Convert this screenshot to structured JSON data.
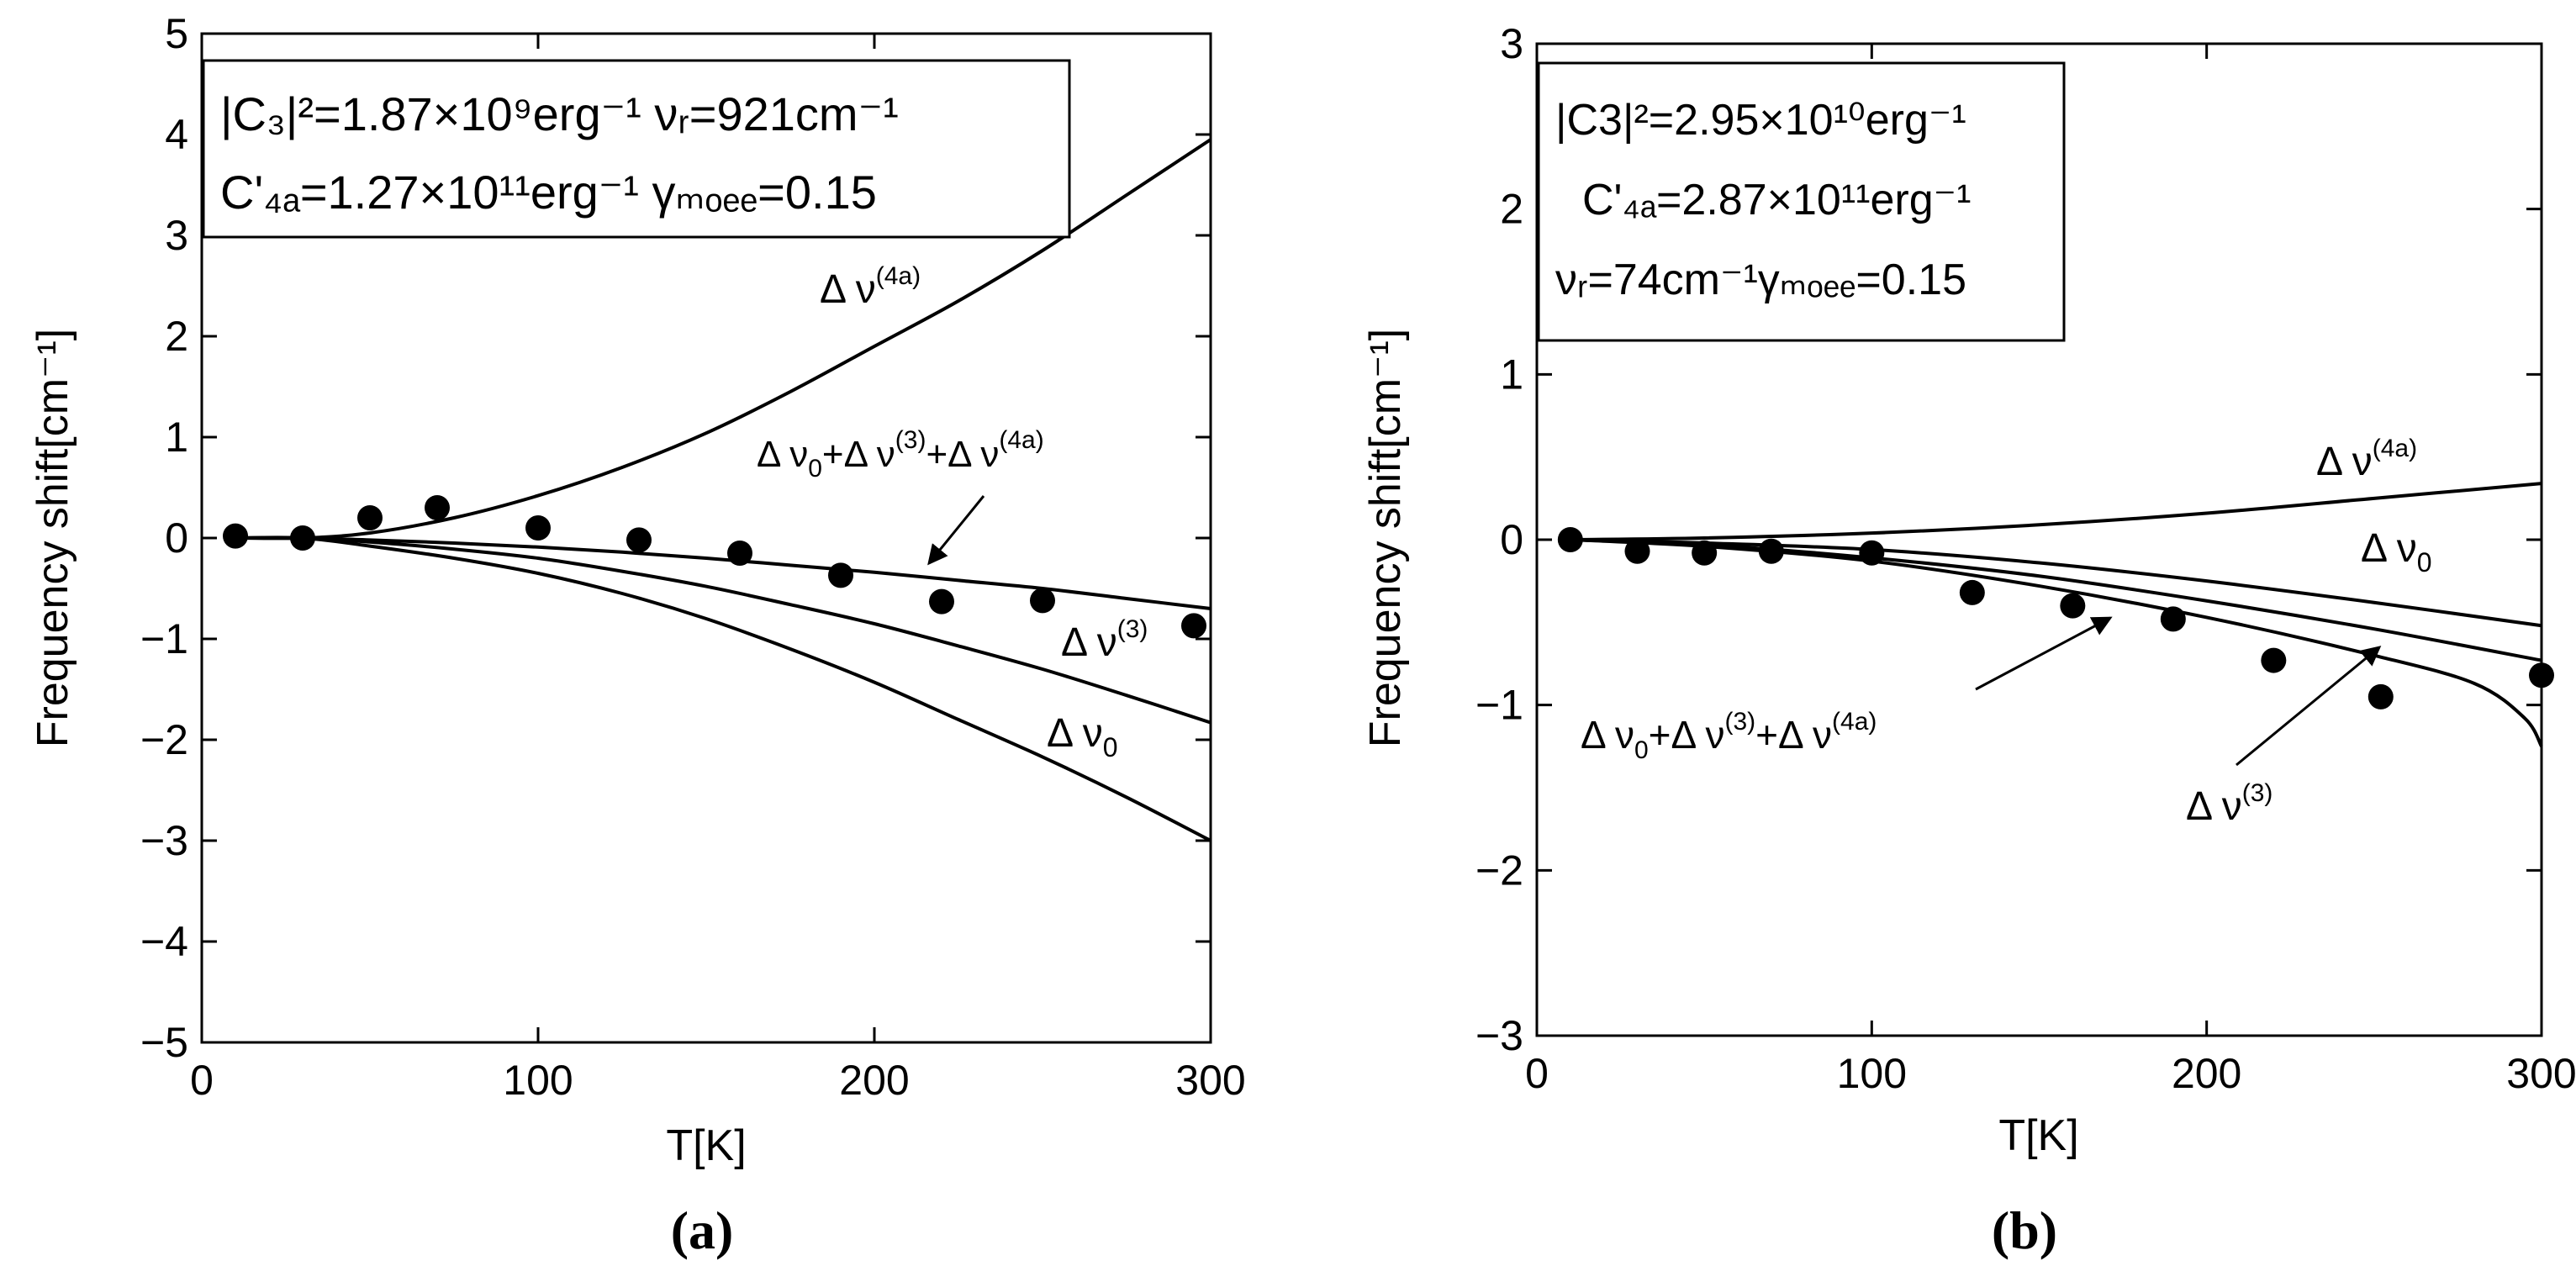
{
  "chart_data": [
    {
      "panel_label": "(a)",
      "type": "line",
      "xlabel": "T[K]",
      "ylabel": "Frequency shift[cm⁻¹]",
      "xlim": [
        0,
        300
      ],
      "ylim": [
        -5,
        5
      ],
      "xticks": [
        0,
        100,
        200,
        300
      ],
      "yticks": [
        -5,
        -4,
        -3,
        -2,
        -1,
        0,
        1,
        2,
        3,
        4,
        5
      ],
      "xtick_labels": [
        "0",
        "100",
        "200",
        "300"
      ],
      "ytick_labels": [
        "−5",
        "−4",
        "−3",
        "−2",
        "−1",
        "0",
        "1",
        "2",
        "3",
        "4",
        "5"
      ],
      "grid": false,
      "legend_box": {
        "line1": "|C₃|²=1.87×10⁹erg⁻¹  νᵣ=921cm⁻¹",
        "line2": "C'₄ₐ=1.27×10¹¹erg⁻¹ γₘₒₑₑ=0.15"
      },
      "series": [
        {
          "name": "Δν(4a)",
          "x": [
            10,
            30,
            50,
            75,
            100,
            125,
            150,
            175,
            200,
            225,
            250,
            275,
            300
          ],
          "y": [
            0,
            0,
            0.05,
            0.2,
            0.42,
            0.7,
            1.04,
            1.45,
            1.9,
            2.35,
            2.85,
            3.4,
            3.95
          ]
        },
        {
          "name": "Δν0+Δν(3)+Δν(4a)",
          "x": [
            10,
            30,
            50,
            75,
            100,
            125,
            150,
            175,
            200,
            225,
            250,
            275,
            300
          ],
          "y": [
            0,
            0,
            -0.02,
            -0.05,
            -0.09,
            -0.14,
            -0.2,
            -0.27,
            -0.34,
            -0.42,
            -0.5,
            -0.6,
            -0.7
          ]
        },
        {
          "name": "Δν(3)",
          "x": [
            10,
            30,
            50,
            75,
            100,
            125,
            150,
            175,
            200,
            225,
            250,
            275,
            300
          ],
          "y": [
            0,
            0,
            -0.04,
            -0.11,
            -0.2,
            -0.33,
            -0.48,
            -0.66,
            -0.85,
            -1.07,
            -1.3,
            -1.56,
            -1.83
          ]
        },
        {
          "name": "Δν0",
          "x": [
            10,
            30,
            50,
            75,
            100,
            125,
            150,
            175,
            200,
            225,
            250,
            275,
            300
          ],
          "y": [
            0,
            0,
            -0.08,
            -0.2,
            -0.35,
            -0.55,
            -0.8,
            -1.1,
            -1.43,
            -1.8,
            -2.17,
            -2.57,
            -3.0
          ]
        }
      ],
      "points": {
        "x": [
          10,
          30,
          50,
          70,
          100,
          130,
          160,
          190,
          220,
          250,
          295
        ],
        "y": [
          0.02,
          0.0,
          0.2,
          0.3,
          0.1,
          -0.02,
          -0.15,
          -0.37,
          -0.63,
          -0.62,
          -0.87
        ]
      },
      "annotations": {
        "a4": "Δ ν",
        "a4_sup": "(4a)",
        "sum_1": "Δ ν",
        "sum_1_sub": "0",
        "sum_2": "+Δ ν",
        "sum_2_sup": "(3)",
        "sum_3": "+Δ ν",
        "sum_3_sup": "(4a)",
        "a3": "Δ ν",
        "a3_sup": "(3)",
        "a0": "Δ ν",
        "a0_sub": "0"
      }
    },
    {
      "panel_label": "(b)",
      "type": "line",
      "xlabel": "T[K]",
      "ylabel": "Frequency shift[cm⁻¹]",
      "xlim": [
        0,
        300
      ],
      "ylim": [
        -3,
        3
      ],
      "xticks": [
        0,
        100,
        200,
        300
      ],
      "yticks": [
        -3,
        -2,
        -1,
        0,
        1,
        2,
        3
      ],
      "xtick_labels": [
        "0",
        "100",
        "200",
        "300"
      ],
      "ytick_labels": [
        "−3",
        "−2",
        "−1",
        "0",
        "1",
        "2",
        "3"
      ],
      "grid": false,
      "legend_box": {
        "line1": "|C3|²=2.95×10¹⁰erg⁻¹",
        "line2": "C'₄ₐ=2.87×10¹¹erg⁻¹",
        "line3": "νᵣ=74cm⁻¹γₘₒₑₑ=0.15"
      },
      "series": [
        {
          "name": "Δν(4a)",
          "x": [
            10,
            50,
            100,
            150,
            200,
            250,
            300
          ],
          "y": [
            0,
            0.01,
            0.04,
            0.09,
            0.16,
            0.25,
            0.34
          ]
        },
        {
          "name": "Δν0",
          "x": [
            10,
            50,
            100,
            150,
            200,
            250,
            300
          ],
          "y": [
            0,
            -0.02,
            -0.06,
            -0.14,
            -0.25,
            -0.38,
            -0.52
          ]
        },
        {
          "name": "Δν(3)",
          "x": [
            10,
            50,
            100,
            150,
            200,
            250,
            300
          ],
          "y": [
            0,
            -0.03,
            -0.11,
            -0.22,
            -0.37,
            -0.54,
            -0.73
          ]
        },
        {
          "name": "Δν0+Δν(3)+Δν(4a)",
          "x": [
            10,
            50,
            100,
            150,
            200,
            250,
            280,
            295,
            300
          ],
          "y": [
            0,
            -0.04,
            -0.13,
            -0.28,
            -0.47,
            -0.7,
            -0.87,
            -1.08,
            -1.25
          ]
        }
      ],
      "points": {
        "x": [
          10,
          30,
          50,
          70,
          100,
          130,
          160,
          190,
          220,
          252,
          300
        ],
        "y": [
          0.0,
          -0.07,
          -0.08,
          -0.07,
          -0.08,
          -0.32,
          -0.4,
          -0.48,
          -0.73,
          -0.95,
          -0.82
        ]
      },
      "annotations": {
        "a4": "Δ ν",
        "a4_sup": "(4a)",
        "a0": "Δ ν",
        "a0_sub": "0",
        "sum_1": "Δ ν",
        "sum_1_sub": "0",
        "sum_2": "+Δ ν",
        "sum_2_sup": "(3)",
        "sum_3": "+Δ ν",
        "sum_3_sup": "(4a)",
        "a3": "Δ ν",
        "a3_sup": "(3)"
      }
    }
  ]
}
